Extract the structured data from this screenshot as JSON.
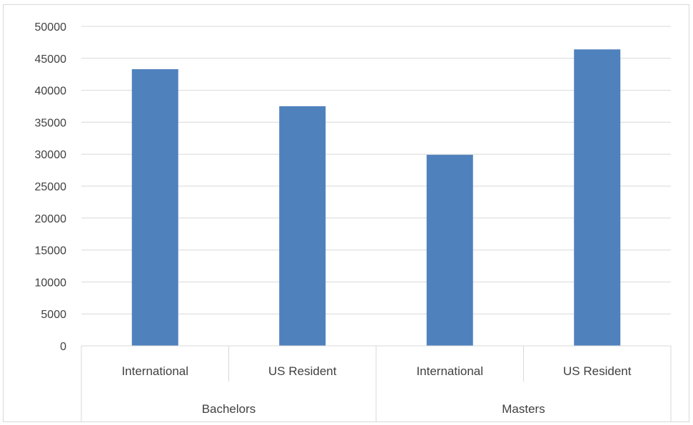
{
  "chart_data": {
    "type": "bar",
    "title": "",
    "xlabel": "",
    "ylabel": "",
    "ylim": [
      0,
      50000
    ],
    "ytick_step": 5000,
    "ytick_labels": [
      "0",
      "5000",
      "10000",
      "15000",
      "20000",
      "25000",
      "30000",
      "35000",
      "40000",
      "45000",
      "50000"
    ],
    "grid": true,
    "legend": "none",
    "bar_color": "#4f81bd",
    "groups": [
      {
        "label": "Bachelors",
        "categories": [
          "International",
          "US Resident"
        ]
      },
      {
        "label": "Masters",
        "categories": [
          "International",
          "US Resident"
        ]
      }
    ],
    "categories": [
      "International",
      "US Resident",
      "International",
      "US Resident"
    ],
    "values": [
      43300,
      37500,
      29900,
      46400
    ]
  }
}
